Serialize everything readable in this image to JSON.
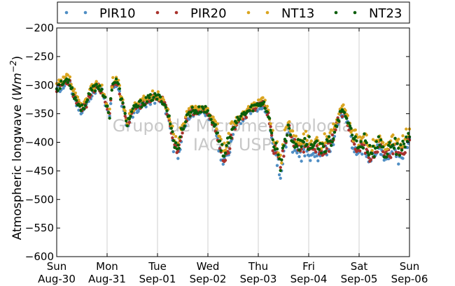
{
  "chart_data": {
    "type": "scatter",
    "ylabel": "Atmospheric longwave (Wm⁻²)",
    "ylim": [
      -600,
      -200
    ],
    "yticks": [
      -200,
      -250,
      -300,
      -350,
      -400,
      -450,
      -500,
      -550,
      -600
    ],
    "x_range_days": [
      0,
      7
    ],
    "xticks": [
      {
        "day": 0,
        "line1": "Sun",
        "line2": "Aug-30"
      },
      {
        "day": 1,
        "line1": "Mon",
        "line2": "Aug-31"
      },
      {
        "day": 2,
        "line1": "Tue",
        "line2": "Sep-01"
      },
      {
        "day": 3,
        "line1": "Wed",
        "line2": "Sep-02"
      },
      {
        "day": 4,
        "line1": "Thu",
        "line2": "Sep-03"
      },
      {
        "day": 5,
        "line1": "Fri",
        "line2": "Sep-04"
      },
      {
        "day": 6,
        "line1": "Sat",
        "line2": "Sep-05"
      },
      {
        "day": 7,
        "line1": "Sun",
        "line2": "Sep-06"
      }
    ],
    "grid": "vertical",
    "legend_position": "top",
    "base_profile": {
      "day": [
        0.0,
        0.1,
        0.2,
        0.25,
        0.3,
        0.4,
        0.5,
        0.6,
        0.7,
        0.8,
        0.9,
        1.0,
        1.05,
        1.1,
        1.2,
        1.3,
        1.4,
        1.5,
        1.6,
        1.7,
        1.8,
        1.9,
        2.0,
        2.1,
        2.2,
        2.3,
        2.4,
        2.5,
        2.6,
        2.7,
        2.8,
        2.9,
        3.0,
        3.1,
        3.2,
        3.3,
        3.4,
        3.5,
        3.6,
        3.7,
        3.8,
        3.9,
        4.0,
        4.1,
        4.2,
        4.3,
        4.4,
        4.45,
        4.5,
        4.6,
        4.7,
        4.8,
        4.9,
        5.0,
        5.1,
        5.2,
        5.3,
        5.4,
        5.5,
        5.6,
        5.7,
        5.8,
        5.9,
        6.0,
        6.1,
        6.2,
        6.3,
        6.4,
        6.5,
        6.6,
        6.7,
        6.8,
        6.9,
        7.0
      ],
      "value": [
        -303,
        -298,
        -289,
        -290,
        -305,
        -328,
        -340,
        -328,
        -307,
        -300,
        -305,
        -340,
        -350,
        -295,
        -292,
        -330,
        -365,
        -345,
        -335,
        -330,
        -325,
        -320,
        -320,
        -325,
        -345,
        -385,
        -410,
        -375,
        -350,
        -342,
        -345,
        -338,
        -347,
        -362,
        -385,
        -420,
        -400,
        -375,
        -360,
        -350,
        -345,
        -337,
        -333,
        -328,
        -350,
        -400,
        -420,
        -440,
        -410,
        -370,
        -395,
        -405,
        -400,
        -400,
        -405,
        -408,
        -402,
        -400,
        -380,
        -355,
        -340,
        -370,
        -395,
        -405,
        -395,
        -420,
        -410,
        -400,
        -415,
        -410,
        -400,
        -410,
        -405,
        -385
      ]
    },
    "series": [
      {
        "name": "PIR10",
        "color": "#4f8ec4",
        "offset": -6,
        "seed": 11
      },
      {
        "name": "PIR20",
        "color": "#a8322d",
        "offset": -3,
        "seed": 23
      },
      {
        "name": "NT13",
        "color": "#daa520",
        "offset": 3,
        "seed": 37
      },
      {
        "name": "NT23",
        "color": "#0b5e0b",
        "offset": -1,
        "seed": 53
      }
    ]
  },
  "watermark": {
    "line1": "Grupo de Micrometeorologia",
    "line2": "IAG / USP"
  }
}
